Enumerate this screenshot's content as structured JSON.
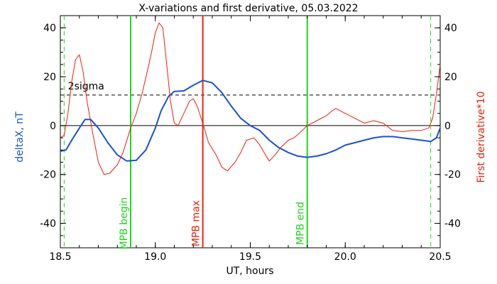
{
  "chart_data": {
    "type": "line",
    "title": "X-variations and first derivative, 05.03.2022",
    "xlabel": "UT, hours",
    "ylabel_left": "deltaX, nT",
    "ylabel_right": "First derivative*10",
    "xlim": [
      18.5,
      20.5
    ],
    "ylim": [
      -50,
      45
    ],
    "x_ticks": [
      "18.5",
      "19.0",
      "19.5",
      "20.0",
      "20.5"
    ],
    "y_ticks": [
      "40",
      "20",
      "0",
      "-20",
      "-40"
    ],
    "y_tick_values": [
      40,
      20,
      0,
      -20,
      -40
    ],
    "x_tick_values": [
      18.5,
      19.0,
      19.5,
      20.0,
      20.5
    ],
    "threshold": {
      "label": "2sigma",
      "value": 12.5
    },
    "colors": {
      "deltaX": "#1a52d6",
      "derivative": "#e82010",
      "mpb_edges": "#22d322",
      "mpb_max": "#ee2010",
      "axis_left": "#1a52d6",
      "axis_right": "#e82010"
    },
    "vertical_lines": [
      {
        "label": "MPB begin",
        "x": 18.87,
        "style": "solid",
        "color_key": "mpb_edges"
      },
      {
        "label": "MPB max",
        "x": 19.25,
        "style": "solid",
        "color_key": "mpb_max"
      },
      {
        "label": "MPB end",
        "x": 19.8,
        "style": "solid",
        "color_key": "mpb_edges"
      },
      {
        "label": "",
        "x": 18.52,
        "style": "dashed",
        "color_key": "mpb_edges"
      },
      {
        "label": "",
        "x": 20.45,
        "style": "dashed",
        "color_key": "mpb_edges"
      }
    ],
    "series": [
      {
        "name": "deltaX",
        "color_key": "deltaX",
        "points": [
          [
            18.5,
            -10.5
          ],
          [
            18.53,
            -10
          ],
          [
            18.56,
            -6
          ],
          [
            18.6,
            -1
          ],
          [
            18.63,
            2.5
          ],
          [
            18.66,
            2.5
          ],
          [
            18.7,
            -1
          ],
          [
            18.75,
            -7
          ],
          [
            18.8,
            -12
          ],
          [
            18.85,
            -14.5
          ],
          [
            18.9,
            -14.2
          ],
          [
            18.95,
            -10
          ],
          [
            19.0,
            -1
          ],
          [
            19.03,
            6
          ],
          [
            19.07,
            12
          ],
          [
            19.1,
            14
          ],
          [
            19.15,
            14.2
          ],
          [
            19.2,
            16.5
          ],
          [
            19.25,
            18.5
          ],
          [
            19.3,
            17.5
          ],
          [
            19.35,
            13.5
          ],
          [
            19.4,
            8
          ],
          [
            19.45,
            3
          ],
          [
            19.5,
            0
          ],
          [
            19.55,
            -2
          ],
          [
            19.6,
            -6
          ],
          [
            19.65,
            -9
          ],
          [
            19.7,
            -11
          ],
          [
            19.75,
            -12.5
          ],
          [
            19.8,
            -13
          ],
          [
            19.85,
            -12.5
          ],
          [
            19.9,
            -11.5
          ],
          [
            19.95,
            -10
          ],
          [
            20.0,
            -8
          ],
          [
            20.05,
            -7
          ],
          [
            20.1,
            -6
          ],
          [
            20.15,
            -5
          ],
          [
            20.2,
            -4.5
          ],
          [
            20.25,
            -4.5
          ],
          [
            20.3,
            -5
          ],
          [
            20.35,
            -5.5
          ],
          [
            20.4,
            -6
          ],
          [
            20.45,
            -6.5
          ],
          [
            20.48,
            -5
          ],
          [
            20.5,
            -1
          ]
        ]
      },
      {
        "name": "First derivative*10",
        "color_key": "derivative",
        "points": [
          [
            18.5,
            -5
          ],
          [
            18.52,
            -4
          ],
          [
            18.54,
            5
          ],
          [
            18.56,
            18
          ],
          [
            18.58,
            27
          ],
          [
            18.6,
            29
          ],
          [
            18.62,
            22
          ],
          [
            18.64,
            10
          ],
          [
            18.67,
            -3
          ],
          [
            18.7,
            -15
          ],
          [
            18.73,
            -20
          ],
          [
            18.76,
            -19.5
          ],
          [
            18.8,
            -16
          ],
          [
            18.83,
            -11
          ],
          [
            18.87,
            -1
          ],
          [
            18.9,
            5
          ],
          [
            18.93,
            13
          ],
          [
            18.96,
            23
          ],
          [
            18.98,
            30
          ],
          [
            19.0,
            38
          ],
          [
            19.02,
            42
          ],
          [
            19.04,
            40
          ],
          [
            19.06,
            25
          ],
          [
            19.08,
            10
          ],
          [
            19.1,
            1
          ],
          [
            19.12,
            0
          ],
          [
            19.15,
            5
          ],
          [
            19.18,
            10
          ],
          [
            19.2,
            11
          ],
          [
            19.22,
            8
          ],
          [
            19.25,
            1
          ],
          [
            19.28,
            -7
          ],
          [
            19.32,
            -12
          ],
          [
            19.35,
            -17
          ],
          [
            19.38,
            -18.5
          ],
          [
            19.42,
            -15
          ],
          [
            19.45,
            -11
          ],
          [
            19.48,
            -6
          ],
          [
            19.52,
            -5
          ],
          [
            19.55,
            -8
          ],
          [
            19.58,
            -12
          ],
          [
            19.6,
            -14.5
          ],
          [
            19.63,
            -12
          ],
          [
            19.66,
            -9
          ],
          [
            19.7,
            -6
          ],
          [
            19.73,
            -5
          ],
          [
            19.76,
            -3
          ],
          [
            19.8,
            0
          ],
          [
            19.85,
            2
          ],
          [
            19.9,
            4
          ],
          [
            19.93,
            6
          ],
          [
            19.95,
            7
          ],
          [
            20.0,
            5
          ],
          [
            20.05,
            3
          ],
          [
            20.1,
            1
          ],
          [
            20.15,
            2
          ],
          [
            20.2,
            1
          ],
          [
            20.25,
            -2
          ],
          [
            20.3,
            -2.5
          ],
          [
            20.35,
            -2
          ],
          [
            20.4,
            -2
          ],
          [
            20.44,
            -1
          ],
          [
            20.46,
            3
          ],
          [
            20.48,
            13
          ],
          [
            20.5,
            25
          ]
        ]
      }
    ]
  }
}
